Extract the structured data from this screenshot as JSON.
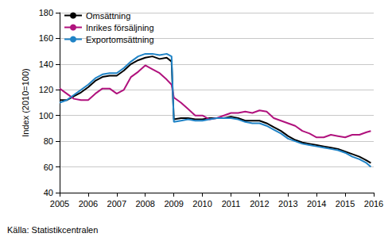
{
  "chart_data": {
    "type": "line",
    "y_label": "Index (2010=100)",
    "source": "Källa: Statistikcentralen",
    "x": [
      2005,
      2005.25,
      2005.5,
      2005.75,
      2006,
      2006.25,
      2006.5,
      2006.75,
      2007,
      2007.25,
      2007.5,
      2007.75,
      2008,
      2008.25,
      2008.5,
      2008.75,
      2008.92,
      2009,
      2009.25,
      2009.5,
      2009.75,
      2010,
      2010.25,
      2010.5,
      2010.75,
      2011,
      2011.25,
      2011.5,
      2011.75,
      2012,
      2012.25,
      2012.5,
      2012.75,
      2013,
      2013.25,
      2013.5,
      2013.75,
      2014,
      2014.25,
      2014.5,
      2014.75,
      2015,
      2015.25,
      2015.5,
      2015.75,
      2015.9
    ],
    "series": [
      {
        "name": "Omsättning",
        "color": "#000000",
        "values": [
          112,
          112,
          115,
          118,
          122,
          127,
          130,
          131,
          131,
          135,
          140,
          143,
          145,
          146,
          144,
          145,
          142,
          97,
          98,
          98,
          97,
          97,
          98,
          98,
          98,
          99,
          98,
          96,
          96,
          96,
          94,
          91,
          88,
          84,
          81,
          79,
          78,
          77,
          76,
          75,
          74,
          72,
          70,
          68,
          65,
          63
        ]
      },
      {
        "name": "Inrikes försäljning",
        "color": "#b0127d",
        "values": [
          121,
          117,
          113,
          112,
          112,
          117,
          121,
          121,
          117,
          120,
          130,
          134,
          139,
          136,
          133,
          128,
          124,
          114,
          110,
          105,
          100,
          100,
          97,
          98,
          100,
          102,
          102,
          103,
          102,
          104,
          103,
          98,
          96,
          94,
          92,
          88,
          86,
          83,
          83,
          85,
          84,
          83,
          85,
          85,
          87,
          88
        ]
      },
      {
        "name": "Exportomsättning",
        "color": "#1f83c6",
        "values": [
          110,
          112,
          116,
          120,
          124,
          129,
          132,
          133,
          133,
          137,
          142,
          146,
          148,
          148,
          147,
          148,
          146,
          95,
          96,
          97,
          96,
          96,
          97,
          98,
          98,
          98,
          97,
          95,
          94,
          94,
          92,
          89,
          86,
          82,
          80,
          78,
          77,
          76,
          75,
          74,
          73,
          71,
          68,
          66,
          63,
          60
        ]
      }
    ],
    "xlim": [
      2005,
      2016
    ],
    "xticks": [
      2005,
      2006,
      2007,
      2008,
      2009,
      2010,
      2011,
      2012,
      2013,
      2014,
      2015,
      2016
    ],
    "ylim": [
      40,
      180
    ],
    "yticks": [
      40,
      60,
      80,
      100,
      120,
      140,
      160,
      180
    ],
    "grid": true,
    "legend": "upper left"
  }
}
